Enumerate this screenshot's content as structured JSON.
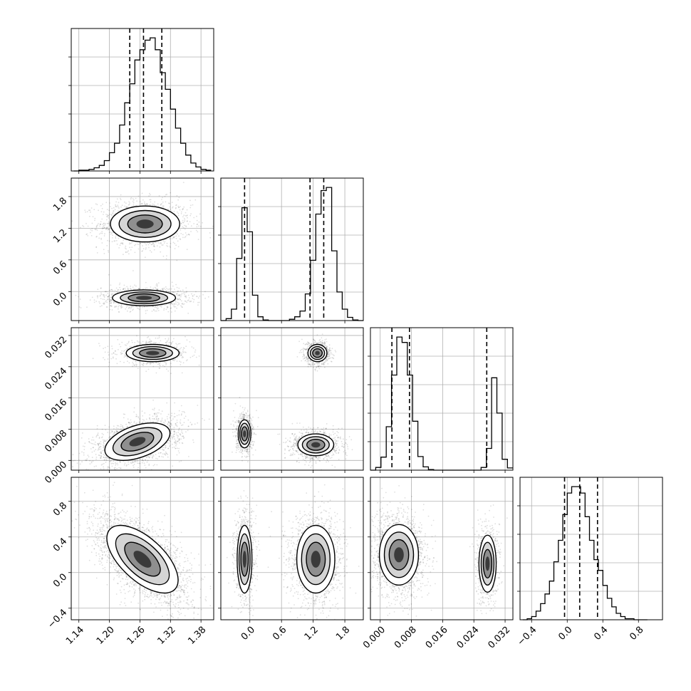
{
  "chart_data": {
    "type": "corner",
    "title": "",
    "grid": true,
    "params": [
      {
        "range": [
          1.125,
          1.405
        ],
        "ticks": [
          1.14,
          1.2,
          1.26,
          1.32,
          1.38
        ],
        "tick_labels": [
          "1.14",
          "1.20",
          "1.26",
          "1.32",
          "1.38"
        ],
        "quantiles": [
          1.24,
          1.267,
          1.303
        ],
        "hist": {
          "bins": [
            1.13,
            1.14,
            1.15,
            1.16,
            1.17,
            1.18,
            1.19,
            1.2,
            1.21,
            1.22,
            1.23,
            1.24,
            1.25,
            1.26,
            1.27,
            1.28,
            1.29,
            1.3,
            1.31,
            1.32,
            1.33,
            1.34,
            1.35,
            1.36,
            1.37,
            1.38,
            1.39,
            1.4
          ],
          "counts": [
            0,
            1,
            1,
            2,
            4,
            7,
            13,
            23,
            35,
            58,
            86,
            110,
            140,
            153,
            165,
            168,
            153,
            124,
            103,
            78,
            54,
            35,
            20,
            10,
            5,
            2,
            1
          ]
        }
      },
      {
        "range": [
          -0.55,
          2.15
        ],
        "ticks": [
          0.0,
          0.6,
          1.2,
          1.8
        ],
        "tick_labels": [
          "0.0",
          "0.6",
          "1.2",
          "1.8"
        ],
        "quantiles": [
          -0.1,
          1.14,
          1.4
        ],
        "hist": {
          "bins": [
            -0.55,
            -0.45,
            -0.35,
            -0.25,
            -0.15,
            -0.05,
            0.05,
            0.15,
            0.25,
            0.35,
            0.45,
            0.55,
            0.65,
            0.75,
            0.85,
            0.95,
            1.05,
            1.15,
            1.25,
            1.35,
            1.45,
            1.55,
            1.65,
            1.75,
            1.85,
            1.95,
            2.05,
            2.15
          ],
          "counts": [
            0,
            3,
            18,
            98,
            178,
            140,
            40,
            6,
            1,
            0,
            0,
            0,
            0,
            2,
            6,
            15,
            42,
            95,
            168,
            205,
            210,
            110,
            45,
            18,
            5,
            1,
            0
          ]
        }
      },
      {
        "range": [
          -0.0025,
          0.034
        ],
        "ticks": [
          0.0,
          0.008,
          0.016,
          0.024,
          0.032
        ],
        "tick_labels": [
          "0.000",
          "0.008",
          "0.016",
          "0.024",
          "0.032"
        ],
        "quantiles": [
          0.003,
          0.0075,
          0.0273
        ],
        "hist": {
          "bins": [
            -0.0025,
            -0.00115,
            0.0002,
            0.00155,
            0.0029,
            0.00425,
            0.0056,
            0.00695,
            0.0083,
            0.00965,
            0.011,
            0.01235,
            0.0137,
            0.01505,
            0.0164,
            0.01775,
            0.0191,
            0.02045,
            0.0218,
            0.02315,
            0.0245,
            0.02585,
            0.0272,
            0.02855,
            0.0299,
            0.03125,
            0.0326,
            0.034
          ],
          "counts": [
            0,
            5,
            24,
            80,
            175,
            245,
            235,
            175,
            90,
            25,
            6,
            1,
            0,
            0,
            0,
            0,
            0,
            0,
            0,
            0,
            0,
            5,
            40,
            170,
            105,
            20,
            4
          ]
        }
      },
      {
        "range": [
          -0.53,
          1.07
        ],
        "ticks": [
          -0.4,
          0.0,
          0.4,
          0.8
        ],
        "tick_labels": [
          "−0.4",
          "0.0",
          "0.4",
          "0.8"
        ],
        "quantiles": [
          -0.03,
          0.14,
          0.34
        ],
        "hist": {
          "bins": [
            -0.5,
            -0.45,
            -0.4,
            -0.35,
            -0.3,
            -0.25,
            -0.2,
            -0.15,
            -0.1,
            -0.05,
            0.0,
            0.05,
            0.1,
            0.15,
            0.2,
            0.25,
            0.3,
            0.35,
            0.4,
            0.45,
            0.5,
            0.55,
            0.6,
            0.65,
            0.7,
            0.75,
            0.8,
            0.85,
            0.9
          ],
          "counts": [
            0,
            1,
            3,
            8,
            15,
            24,
            36,
            54,
            74,
            98,
            118,
            124,
            124,
            118,
            96,
            74,
            56,
            46,
            32,
            20,
            12,
            6,
            3,
            1,
            1,
            0,
            0,
            0
          ]
        }
      }
    ],
    "pairs": [
      {
        "x": 0,
        "y": 1,
        "blobs": [
          {
            "cx": 1.27,
            "cy": 1.28,
            "sx": 0.034,
            "sy": 0.17,
            "w": 0.55
          },
          {
            "cx": 1.268,
            "cy": -0.12,
            "sx": 0.031,
            "sy": 0.075,
            "w": 0.45
          }
        ]
      },
      {
        "x": 0,
        "y": 2,
        "blobs": [
          {
            "cx": 1.285,
            "cy": 0.0275,
            "sx": 0.026,
            "sy": 0.0011,
            "w": 0.3
          },
          {
            "cx": 1.255,
            "cy": 0.0048,
            "sx": 0.032,
            "sy": 0.0024,
            "w": 0.7,
            "rho": 0.45
          }
        ]
      },
      {
        "x": 0,
        "y": 3,
        "blobs": [
          {
            "cx": 1.265,
            "cy": 0.15,
            "sx": 0.035,
            "sy": 0.19,
            "w": 1.0,
            "rho": -0.62
          }
        ]
      },
      {
        "x": 1,
        "y": 2,
        "blobs": [
          {
            "cx": -0.1,
            "cy": 0.0068,
            "sx": 0.06,
            "sy": 0.0018,
            "w": 0.3
          },
          {
            "cx": 1.28,
            "cy": 0.0275,
            "sx": 0.09,
            "sy": 0.0011,
            "w": 0.3
          },
          {
            "cx": 1.25,
            "cy": 0.004,
            "sx": 0.17,
            "sy": 0.0014,
            "w": 0.4
          }
        ]
      },
      {
        "x": 1,
        "y": 3,
        "blobs": [
          {
            "cx": -0.1,
            "cy": 0.15,
            "sx": 0.07,
            "sy": 0.19,
            "w": 0.35
          },
          {
            "cx": 1.25,
            "cy": 0.15,
            "sx": 0.18,
            "sy": 0.19,
            "w": 0.65
          }
        ]
      },
      {
        "x": 2,
        "y": 3,
        "blobs": [
          {
            "cx": 0.0048,
            "cy": 0.2,
            "sx": 0.0025,
            "sy": 0.17,
            "w": 0.7
          },
          {
            "cx": 0.0275,
            "cy": 0.1,
            "sx": 0.0011,
            "sy": 0.16,
            "w": 0.3
          }
        ]
      }
    ]
  }
}
